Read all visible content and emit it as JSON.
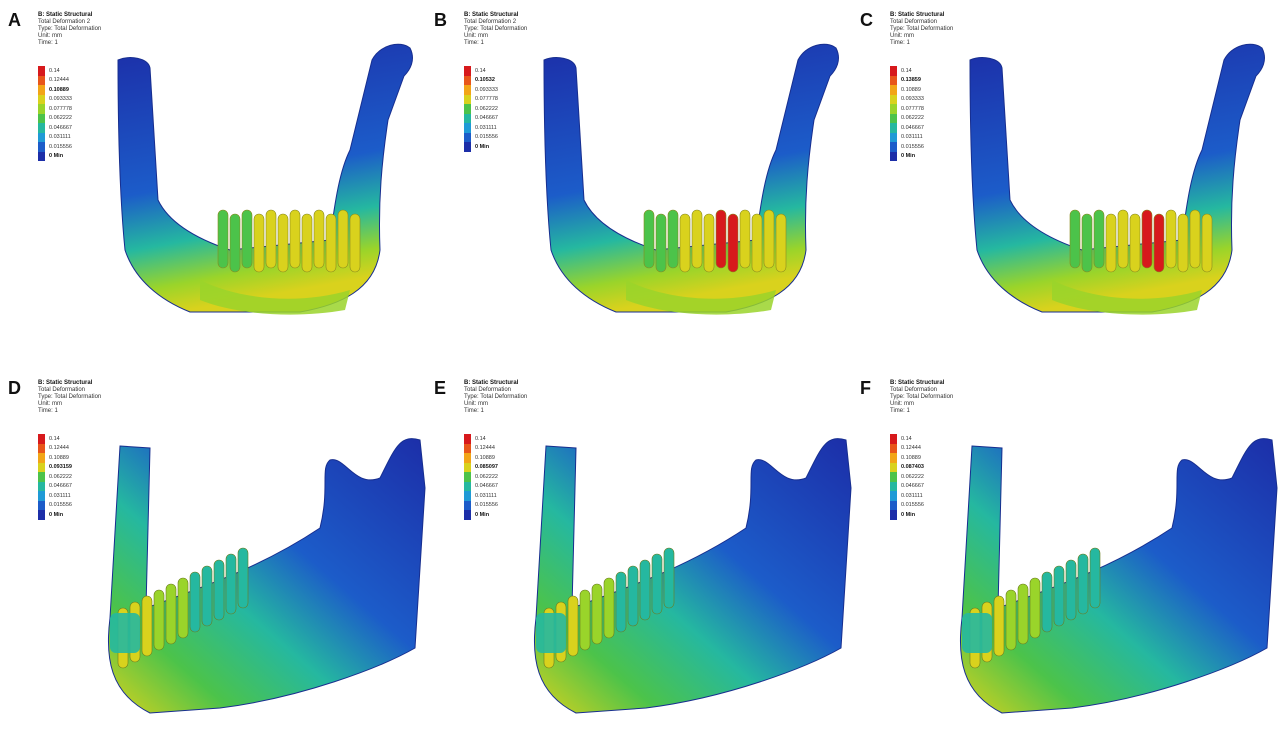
{
  "panels": [
    {
      "letter": "A",
      "view": "side",
      "header": [
        "B: Static Structural",
        "Total Deformation 2",
        "Type: Total Deformation",
        "Unit: mm",
        "Time: 1"
      ],
      "legend": [
        "0.14",
        "0.12444",
        "0.10889",
        "0.093333",
        "0.077778",
        "0.062222",
        "0.046667",
        "0.031111",
        "0.015556",
        "0 Min"
      ],
      "bold_index": 2,
      "hot": 0.65
    },
    {
      "letter": "B",
      "view": "side",
      "header": [
        "B: Static Structural",
        "Total Deformation 2",
        "Type: Total Deformation",
        "Unit: mm",
        "Time: 1"
      ],
      "legend": [
        "0.14",
        "0.10532",
        "0.093333",
        "0.077778",
        "0.062222",
        "0.046667",
        "0.031111",
        "0.015556",
        "0 Min"
      ],
      "bold_index": 1,
      "hot": 0.8
    },
    {
      "letter": "C",
      "view": "side",
      "header": [
        "B: Static Structural",
        "Total Deformation",
        "Type: Total Deformation",
        "Unit: mm",
        "Time: 1"
      ],
      "legend": [
        "0.14",
        "0.13859",
        "0.10889",
        "0.093333",
        "0.077778",
        "0.062222",
        "0.046667",
        "0.031111",
        "0.015556",
        "0 Min"
      ],
      "bold_index": 1,
      "hot": 1.0
    },
    {
      "letter": "D",
      "view": "front",
      "header": [
        "B: Static Structural",
        "Total Deformation",
        "Type: Total Deformation",
        "Unit: mm",
        "Time: 1"
      ],
      "legend": [
        "0.14",
        "0.12444",
        "0.10889",
        "0.093159",
        "0.062222",
        "0.046667",
        "0.031111",
        "0.015556",
        "0 Min"
      ],
      "bold_index": 3,
      "hot": 0.6
    },
    {
      "letter": "E",
      "view": "front",
      "header": [
        "B: Static Structural",
        "Total Deformation",
        "Type: Total Deformation",
        "Unit: mm",
        "Time: 1"
      ],
      "legend": [
        "0.14",
        "0.12444",
        "0.10889",
        "0.085097",
        "0.062222",
        "0.046667",
        "0.031111",
        "0.015556",
        "0 Min"
      ],
      "bold_index": 3,
      "hot": 0.55
    },
    {
      "letter": "F",
      "view": "front",
      "header": [
        "B: Static Structural",
        "Total Deformation",
        "Type: Total Deformation",
        "Unit: mm",
        "Time: 1"
      ],
      "legend": [
        "0.14",
        "0.12444",
        "0.10889",
        "0.087403",
        "0.062222",
        "0.046667",
        "0.031111",
        "0.015556",
        "0 Min"
      ],
      "bold_index": 3,
      "hot": 0.55
    }
  ],
  "colors": {
    "scale": [
      "#d7191c",
      "#e8561a",
      "#f2a517",
      "#d9d21d",
      "#9ad42a",
      "#4cc34a",
      "#25b8a0",
      "#1f9ad6",
      "#1c5cc9",
      "#1c2ea8"
    ],
    "bone": "#1d3fb8",
    "bone_dark": "#172e8f"
  }
}
